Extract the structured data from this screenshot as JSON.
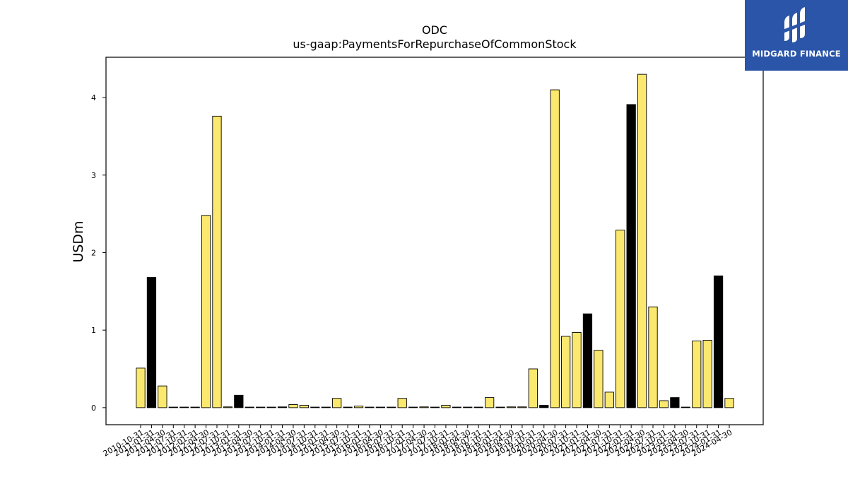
{
  "chart_data": {
    "type": "bar",
    "title": "ODC",
    "subtitle": "us-gaap:PaymentsForRepurchaseOfCommonStock",
    "xlabel": "",
    "ylabel": "USDm",
    "ylim": [
      -0.22,
      4.52
    ],
    "yticks": [
      0,
      1,
      2,
      3,
      4
    ],
    "grid": false,
    "colors": {
      "q": "#fbe86e",
      "fy": "#000000",
      "edge": "#000000"
    },
    "categories": [
      "2010-10-31",
      "2011-01-31",
      "2011-04-30",
      "2011-07-31",
      "2011-10-31",
      "2012-01-31",
      "2012-04-30",
      "2012-07-31",
      "2012-10-31",
      "2013-01-31",
      "2013-04-30",
      "2013-07-31",
      "2013-10-31",
      "2014-01-31",
      "2014-04-30",
      "2014-07-31",
      "2014-10-31",
      "2015-01-31",
      "2015-04-30",
      "2015-07-31",
      "2015-10-31",
      "2016-01-31",
      "2016-04-30",
      "2016-07-31",
      "2016-10-31",
      "2017-01-31",
      "2017-04-30",
      "2017-07-31",
      "2017-10-31",
      "2018-01-31",
      "2018-04-30",
      "2018-07-31",
      "2018-10-31",
      "2019-01-31",
      "2019-04-30",
      "2019-07-31",
      "2019-10-31",
      "2020-01-31",
      "2020-04-30",
      "2020-07-31",
      "2020-10-31",
      "2021-01-31",
      "2021-04-30",
      "2021-07-31",
      "2021-10-31",
      "2022-01-31",
      "2022-04-30",
      "2022-07-31",
      "2022-10-31",
      "2023-01-31",
      "2023-04-30",
      "2023-07-31",
      "2023-10-31",
      "2024-01-31",
      "2024-04-30"
    ],
    "values": [
      0.51,
      1.68,
      0.28,
      0.0,
      0.0,
      0.0,
      2.48,
      3.76,
      0.01,
      0.16,
      0.0,
      0.0,
      0.0,
      0.01,
      0.04,
      0.03,
      0.0,
      0.0,
      0.12,
      0.0,
      0.02,
      0.0,
      0.0,
      0.0,
      0.12,
      0.0,
      0.01,
      0.0,
      0.03,
      0.0,
      0.0,
      0.0,
      0.13,
      0.0,
      0.01,
      0.01,
      0.5,
      0.03,
      4.1,
      0.92,
      0.97,
      1.21,
      0.74,
      0.2,
      2.29,
      3.91,
      4.3,
      1.3,
      0.09,
      0.13,
      0.0,
      0.86,
      0.87,
      1.7,
      0.12
    ],
    "fiscal_year_end": [
      false,
      true,
      false,
      false,
      false,
      true,
      false,
      false,
      false,
      true,
      false,
      false,
      false,
      true,
      false,
      false,
      false,
      true,
      false,
      false,
      false,
      true,
      false,
      false,
      false,
      true,
      false,
      false,
      false,
      true,
      false,
      false,
      false,
      true,
      false,
      false,
      false,
      true,
      false,
      false,
      false,
      true,
      false,
      false,
      false,
      true,
      false,
      false,
      false,
      true,
      false,
      false,
      false,
      true,
      false
    ]
  },
  "logo": {
    "text": "MIDGARD FINANCE",
    "color": "#2a55a8"
  }
}
